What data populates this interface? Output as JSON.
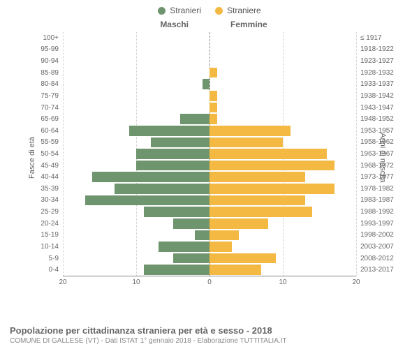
{
  "chart": {
    "type": "population-pyramid",
    "legend": [
      {
        "label": "Stranieri",
        "color": "#6f956f"
      },
      {
        "label": "Straniere",
        "color": "#f4b942"
      }
    ],
    "column_titles": {
      "left": "Maschi",
      "right": "Femmine"
    },
    "y_axis_titles": {
      "left": "Fasce di età",
      "right": "Anni di nascita"
    },
    "title": "Popolazione per cittadinanza straniera per età e sesso - 2018",
    "subtitle": "COMUNE DI GALLESE (VT) - Dati ISTAT 1° gennaio 2018 - Elaborazione TUTTITALIA.IT",
    "xlim": 20,
    "x_ticks": [
      20,
      10,
      0,
      10,
      20
    ],
    "background_color": "#ffffff",
    "grid_color": "#cccccc",
    "male_color": "#6f956f",
    "female_color": "#f4b942",
    "label_fontsize": 10,
    "title_fontsize": 13,
    "rows": [
      {
        "age": "100+",
        "year": "≤ 1917",
        "m": 0,
        "f": 0
      },
      {
        "age": "95-99",
        "year": "1918-1922",
        "m": 0,
        "f": 0
      },
      {
        "age": "90-94",
        "year": "1923-1927",
        "m": 0,
        "f": 0
      },
      {
        "age": "85-89",
        "year": "1928-1932",
        "m": 0,
        "f": 1
      },
      {
        "age": "80-84",
        "year": "1933-1937",
        "m": 1,
        "f": 0
      },
      {
        "age": "75-79",
        "year": "1938-1942",
        "m": 0,
        "f": 1
      },
      {
        "age": "70-74",
        "year": "1943-1947",
        "m": 0,
        "f": 1
      },
      {
        "age": "65-69",
        "year": "1948-1952",
        "m": 4,
        "f": 1
      },
      {
        "age": "60-64",
        "year": "1953-1957",
        "m": 11,
        "f": 11
      },
      {
        "age": "55-59",
        "year": "1958-1962",
        "m": 8,
        "f": 10
      },
      {
        "age": "50-54",
        "year": "1963-1967",
        "m": 10,
        "f": 16
      },
      {
        "age": "45-49",
        "year": "1968-1972",
        "m": 10,
        "f": 17
      },
      {
        "age": "40-44",
        "year": "1973-1977",
        "m": 16,
        "f": 13
      },
      {
        "age": "35-39",
        "year": "1978-1982",
        "m": 13,
        "f": 17
      },
      {
        "age": "30-34",
        "year": "1983-1987",
        "m": 17,
        "f": 13
      },
      {
        "age": "25-29",
        "year": "1988-1992",
        "m": 9,
        "f": 14
      },
      {
        "age": "20-24",
        "year": "1993-1997",
        "m": 5,
        "f": 8
      },
      {
        "age": "15-19",
        "year": "1998-2002",
        "m": 2,
        "f": 4
      },
      {
        "age": "10-14",
        "year": "2003-2007",
        "m": 7,
        "f": 3
      },
      {
        "age": "5-9",
        "year": "2008-2012",
        "m": 5,
        "f": 9
      },
      {
        "age": "0-4",
        "year": "2013-2017",
        "m": 9,
        "f": 7
      }
    ]
  }
}
